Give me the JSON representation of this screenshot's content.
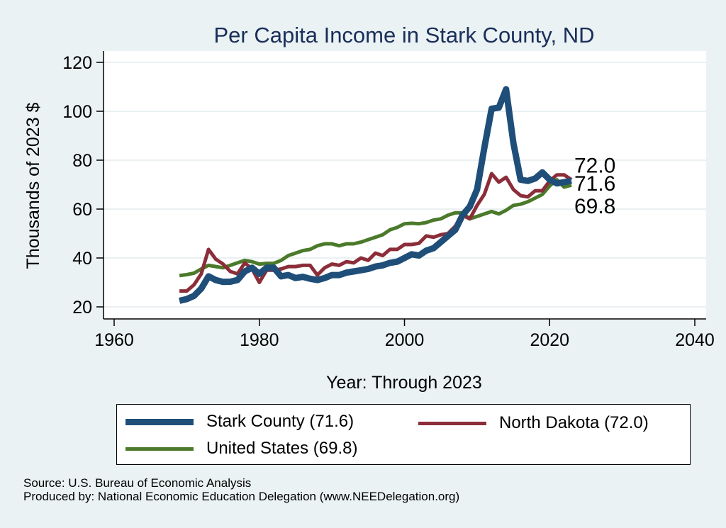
{
  "chart_data": {
    "type": "line",
    "title": "Per Capita Income in Stark County, ND",
    "xlabel": "Year: Through 2023",
    "ylabel": "Thousands of 2023 $",
    "xlim": [
      1960,
      2040
    ],
    "ylim": [
      20,
      120
    ],
    "xticks": [
      "1960",
      "1980",
      "2000",
      "2020",
      "2040"
    ],
    "yticks": [
      "20",
      "40",
      "60",
      "80",
      "100",
      "120"
    ],
    "x": [
      1969,
      1970,
      1971,
      1972,
      1973,
      1974,
      1975,
      1976,
      1977,
      1978,
      1979,
      1980,
      1981,
      1982,
      1983,
      1984,
      1985,
      1986,
      1987,
      1988,
      1989,
      1990,
      1991,
      1992,
      1993,
      1994,
      1995,
      1996,
      1997,
      1998,
      1999,
      2000,
      2001,
      2002,
      2003,
      2004,
      2005,
      2006,
      2007,
      2008,
      2009,
      2010,
      2011,
      2012,
      2013,
      2014,
      2015,
      2016,
      2017,
      2018,
      2019,
      2020,
      2021,
      2022,
      2023
    ],
    "series": [
      {
        "name": "Stark County",
        "color": "#1f4e79",
        "width": 9,
        "values": [
          22.5,
          23.2,
          24.5,
          27.5,
          32.5,
          31.0,
          30.2,
          30.3,
          31.0,
          34.5,
          36.0,
          33.5,
          36.0,
          36.0,
          32.5,
          33.0,
          31.8,
          32.3,
          31.5,
          31.0,
          31.8,
          33.0,
          33.0,
          34.0,
          34.5,
          35.0,
          35.5,
          36.5,
          37.0,
          38.0,
          38.5,
          40.0,
          41.5,
          41.0,
          43.0,
          44.0,
          46.5,
          49.0,
          51.5,
          57.5,
          61.0,
          68.0,
          85.0,
          101.0,
          101.5,
          109.0,
          87.0,
          72.0,
          71.5,
          72.5,
          75.0,
          72.0,
          70.5,
          71.0,
          71.6
        ]
      },
      {
        "name": "North Dakota",
        "color": "#8b2e3a",
        "width": 5,
        "values": [
          26.5,
          26.5,
          29.0,
          33.5,
          43.5,
          39.5,
          37.5,
          34.5,
          33.5,
          38.0,
          35.5,
          30.0,
          35.0,
          35.0,
          35.5,
          36.5,
          36.5,
          37.0,
          37.0,
          33.0,
          36.0,
          37.5,
          37.0,
          38.5,
          38.0,
          40.0,
          39.0,
          42.0,
          41.0,
          43.5,
          43.5,
          45.5,
          45.5,
          46.0,
          49.0,
          48.5,
          49.5,
          50.0,
          53.0,
          57.5,
          56.0,
          61.5,
          66.0,
          74.5,
          71.0,
          73.0,
          68.0,
          65.5,
          65.0,
          67.5,
          67.5,
          71.5,
          74.0,
          74.0,
          72.0
        ]
      },
      {
        "name": "United States",
        "color": "#4a7a2a",
        "width": 5,
        "values": [
          32.8,
          33.2,
          33.8,
          35.5,
          37.0,
          36.5,
          36.0,
          37.0,
          38.0,
          39.0,
          38.5,
          37.5,
          37.8,
          37.8,
          39.0,
          41.0,
          42.0,
          43.0,
          43.5,
          45.0,
          45.8,
          45.8,
          45.0,
          45.8,
          45.8,
          46.5,
          47.5,
          48.5,
          49.5,
          51.5,
          52.5,
          54.0,
          54.2,
          54.0,
          54.5,
          55.5,
          56.0,
          57.5,
          58.5,
          58.5,
          56.0,
          57.0,
          58.0,
          59.0,
          58.0,
          59.5,
          61.5,
          62.0,
          63.0,
          64.5,
          66.0,
          69.5,
          72.0,
          69.0,
          69.8
        ]
      }
    ],
    "end_labels": [
      {
        "text": "72.0",
        "value": 72.0
      },
      {
        "text": "71.6",
        "value": 71.6
      },
      {
        "text": "69.8",
        "value": 69.8
      }
    ]
  },
  "legend": {
    "items": [
      {
        "label": "Stark County (71.6)",
        "color": "#1f4e79"
      },
      {
        "label": "North Dakota (72.0)",
        "color": "#8b2e3a"
      },
      {
        "label": "United States (69.8)",
        "color": "#4a7a2a"
      }
    ]
  },
  "source": {
    "line1": "Source: U.S. Bureau of Economic Analysis",
    "line2": "Produced by: National Economic Education Delegation (www.NEEDelegation.org)"
  }
}
